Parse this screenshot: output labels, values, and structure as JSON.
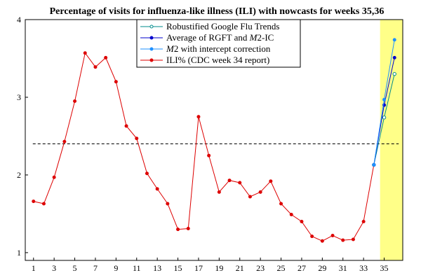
{
  "chart_data": {
    "type": "line",
    "title": "Percentage of visits for influenza-like illness (ILI) with nowcasts for weeks 35,36",
    "xlabel": "",
    "ylabel": "",
    "xlim": [
      0.2,
      36.8
    ],
    "ylim": [
      0.9,
      4
    ],
    "x_ticks": [
      1,
      3,
      5,
      7,
      9,
      11,
      13,
      15,
      17,
      19,
      21,
      23,
      25,
      27,
      29,
      31,
      33,
      35
    ],
    "y_ticks": [
      1,
      2,
      3,
      4
    ],
    "grid": false,
    "legend_position": "top-center",
    "reference_line": {
      "y": 2.4,
      "style": "dashed",
      "color": "#000000"
    },
    "highlight_band": {
      "x_range": [
        34.6,
        36.8
      ],
      "color": "#ffff88"
    },
    "series": [
      {
        "name": "Robustified Google Flu Trends",
        "color": "#008b8b",
        "marker": "open-circle",
        "x": [
          34,
          35,
          36
        ],
        "y": [
          2.13,
          2.74,
          3.3
        ]
      },
      {
        "name": "Average of RGFT and M2-IC",
        "name_parts": [
          "Average of RGFT and ",
          "M",
          "2-IC"
        ],
        "color": "#0000cc",
        "marker": "dot",
        "x": [
          34,
          35,
          36
        ],
        "y": [
          2.13,
          2.9,
          3.51
        ]
      },
      {
        "name": "M2 with intercept correction",
        "name_parts": [
          "",
          "M",
          "2 with intercept correction"
        ],
        "color": "#1e90ff",
        "marker": "dot",
        "x": [
          34,
          35,
          36
        ],
        "y": [
          2.13,
          2.97,
          3.74
        ]
      },
      {
        "name": "ILI% (CDC week 34 report)",
        "color": "#dd0000",
        "marker": "dot",
        "x": [
          1,
          2,
          3,
          4,
          5,
          6,
          7,
          8,
          9,
          10,
          11,
          12,
          13,
          14,
          15,
          16,
          17,
          18,
          19,
          20,
          21,
          22,
          23,
          24,
          25,
          26,
          27,
          28,
          29,
          30,
          31,
          32,
          33,
          34
        ],
        "y": [
          1.66,
          1.63,
          1.97,
          2.43,
          2.95,
          3.57,
          3.39,
          3.51,
          3.2,
          2.63,
          2.47,
          2.02,
          1.82,
          1.63,
          1.3,
          1.31,
          2.75,
          2.25,
          1.78,
          1.93,
          1.9,
          1.72,
          1.78,
          1.92,
          1.63,
          1.49,
          1.4,
          1.21,
          1.15,
          1.22,
          1.16,
          1.17,
          1.4,
          2.13
        ]
      }
    ]
  }
}
